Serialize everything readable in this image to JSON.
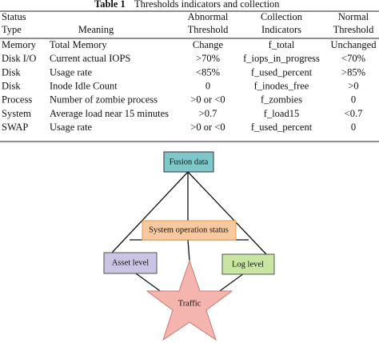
{
  "table": {
    "caption": {
      "label": "Table 1",
      "text": "Thresholds indicators and collection"
    },
    "header": [
      [
        "Status",
        "Type"
      ],
      [
        "Meaning"
      ],
      [
        "Abnormal",
        "Threshold"
      ],
      [
        "Collection",
        "Indicators"
      ],
      [
        "Normal",
        "Threshold"
      ]
    ],
    "rows": [
      [
        "Memory",
        "Total Memory",
        "Change",
        "f_total",
        "Unchanged"
      ],
      [
        "Disk I/O",
        "Current actual IOPS",
        ">70%",
        "f_iops_in_progress",
        "<70%"
      ],
      [
        "Disk",
        "Usage rate",
        "<85%",
        "f_used_percent",
        ">85%"
      ],
      [
        "Disk",
        "Inode Idle Count",
        "0",
        "f_inodes_free",
        ">0"
      ],
      [
        "Process",
        "Number of zombie process",
        ">0 or <0",
        "f_zombies",
        "0"
      ],
      [
        "System",
        "Average load near 15 minutes",
        ">0.7",
        "f_load15",
        "<0.7"
      ],
      [
        "SWAP",
        "Usage rate",
        ">0 or <0",
        "f_used_percent",
        "0"
      ]
    ]
  },
  "diagram": {
    "nodes": [
      {
        "label": "Fusion data"
      },
      {
        "label": "System operation status"
      },
      {
        "label": "Asset level"
      },
      {
        "label": "Log level"
      },
      {
        "label": "Traffic"
      }
    ]
  }
}
